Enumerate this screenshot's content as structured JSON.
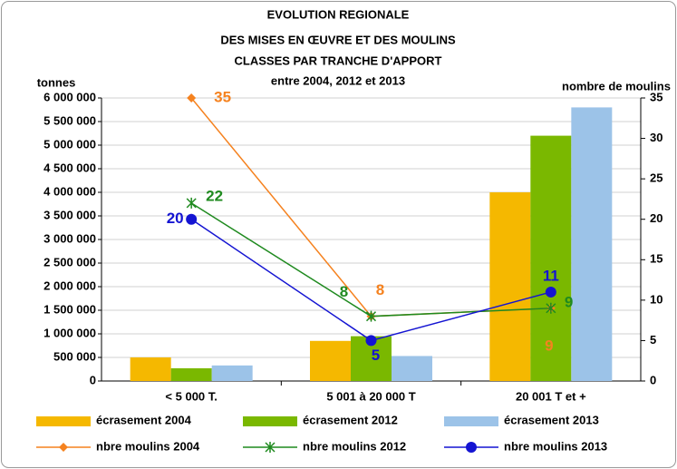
{
  "chart_data": {
    "type": "bar",
    "title": [
      "EVOLUTION REGIONALE",
      "DES MISES EN ŒUVRE ET DES MOULINS",
      "CLASSES PAR TRANCHE D'APPORT",
      "entre 2004, 2012 et 2013"
    ],
    "ylabel": "tonnes",
    "y2label": "nombre de moulins",
    "categories": [
      "< 5 000 T.",
      "5 001 à 20 000 T",
      "20 001 T et +"
    ],
    "series": [
      {
        "name": "écrasement 2004",
        "type": "bar",
        "color": "#f5b800",
        "values": [
          500000,
          850000,
          4000000
        ]
      },
      {
        "name": "écrasement 2012",
        "type": "bar",
        "color": "#7ab800",
        "values": [
          270000,
          950000,
          5200000
        ]
      },
      {
        "name": "écrasement 2013",
        "type": "bar",
        "color": "#9cc3e8",
        "values": [
          330000,
          530000,
          5800000
        ]
      },
      {
        "name": "nbre moulins 2004",
        "type": "line",
        "axis": "y2",
        "marker": "diamond",
        "color": "#f5821f",
        "values": [
          35,
          8,
          9
        ]
      },
      {
        "name": "nbre moulins 2012",
        "type": "line",
        "axis": "y2",
        "marker": "star",
        "color": "#1f8a1f",
        "values": [
          22,
          8,
          9
        ]
      },
      {
        "name": "nbre moulins 2013",
        "type": "line",
        "axis": "y2",
        "marker": "circle",
        "color": "#1414d2",
        "values": [
          20,
          5,
          11
        ]
      }
    ],
    "ylim": [
      0,
      6000000
    ],
    "yticks": [
      0,
      {
        "value": 500000,
        "label": "500 000"
      },
      {
        "value": 1000000,
        "label": "1 000 000"
      },
      {
        "value": 1500000,
        "label": "1 500 000"
      },
      {
        "value": 2000000,
        "label": "2 000 000"
      },
      {
        "value": 2500000,
        "label": "2 500 000"
      },
      {
        "value": 3000000,
        "label": "3 000 000"
      },
      {
        "value": 3500000,
        "label": "3 500 000"
      },
      {
        "value": 4000000,
        "label": "4 000 000"
      },
      {
        "value": 4500000,
        "label": "4 500 000"
      },
      {
        "value": 5000000,
        "label": "5 000 000"
      },
      {
        "value": 5500000,
        "label": "5 500 000"
      },
      {
        "value": 6000000,
        "label": "6 000 000"
      }
    ],
    "y2lim": [
      0,
      35
    ],
    "y2ticks": [
      0,
      5,
      10,
      15,
      20,
      25,
      30,
      35
    ],
    "grid": true
  }
}
